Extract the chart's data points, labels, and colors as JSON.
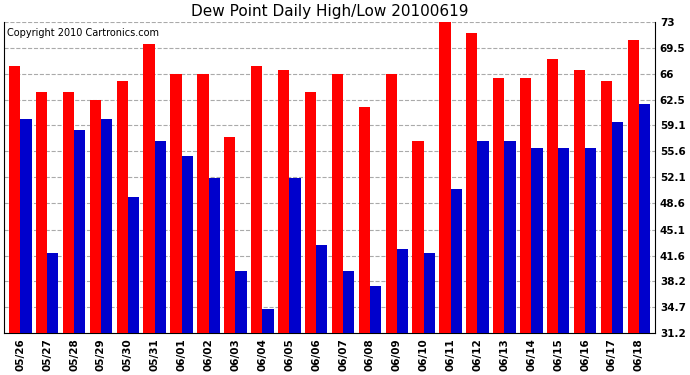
{
  "title": "Dew Point Daily High/Low 20100619",
  "copyright": "Copyright 2010 Cartronics.com",
  "dates": [
    "05/26",
    "05/27",
    "05/28",
    "05/29",
    "05/30",
    "05/31",
    "06/01",
    "06/02",
    "06/03",
    "06/04",
    "06/05",
    "06/06",
    "06/07",
    "06/08",
    "06/09",
    "06/10",
    "06/11",
    "06/12",
    "06/13",
    "06/14",
    "06/15",
    "06/16",
    "06/17",
    "06/18"
  ],
  "highs": [
    67.0,
    63.5,
    63.5,
    62.5,
    65.0,
    70.0,
    66.0,
    66.0,
    57.5,
    67.0,
    66.5,
    63.5,
    66.0,
    61.5,
    66.0,
    57.0,
    73.0,
    71.5,
    65.5,
    65.5,
    68.0,
    66.5,
    65.0,
    70.5
  ],
  "lows": [
    60.0,
    42.0,
    58.5,
    60.0,
    49.5,
    57.0,
    55.0,
    52.0,
    39.5,
    34.5,
    52.0,
    43.0,
    39.5,
    37.5,
    42.5,
    42.0,
    50.5,
    57.0,
    57.0,
    56.0,
    56.0,
    56.0,
    59.5,
    62.0
  ],
  "bar_color_high": "#ff0000",
  "bar_color_low": "#0000cc",
  "background_color": "#ffffff",
  "plot_bg_color": "#ffffff",
  "grid_color": "#aaaaaa",
  "title_color": "#000000",
  "copyright_color": "#000000",
  "ylim_min": 31.2,
  "ylim_max": 73.0,
  "yticks": [
    31.2,
    34.7,
    38.2,
    41.6,
    45.1,
    48.6,
    52.1,
    55.6,
    59.1,
    62.5,
    66.0,
    69.5,
    73.0
  ],
  "title_fontsize": 11,
  "copyright_fontsize": 7,
  "tick_fontsize": 7.5,
  "bar_width": 0.42,
  "fig_width": 6.9,
  "fig_height": 3.75
}
